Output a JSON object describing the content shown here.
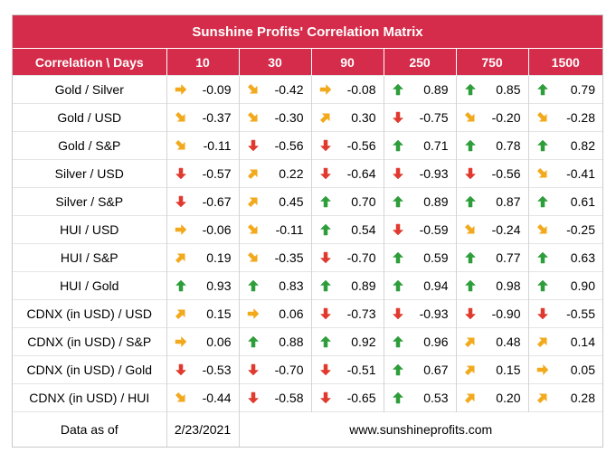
{
  "title": "Sunshine Profits' Correlation Matrix",
  "header": {
    "corner": "Correlation \\ Days",
    "days": [
      "10",
      "30",
      "90",
      "250",
      "750",
      "1500"
    ]
  },
  "colors": {
    "header_bg": "#d42c4a",
    "up": "#2e9e3a",
    "down": "#e03a2f",
    "side": "#f2a91c"
  },
  "rows": [
    {
      "label": "Gold / Silver",
      "cells": [
        [
          "right",
          "-0.09"
        ],
        [
          "down-right",
          "-0.42"
        ],
        [
          "right",
          "-0.08"
        ],
        [
          "up",
          "0.89"
        ],
        [
          "up",
          "0.85"
        ],
        [
          "up",
          "0.79"
        ]
      ]
    },
    {
      "label": "Gold / USD",
      "cells": [
        [
          "down-right",
          "-0.37"
        ],
        [
          "down-right",
          "-0.30"
        ],
        [
          "up-right",
          "0.30"
        ],
        [
          "down",
          "-0.75"
        ],
        [
          "down-right",
          "-0.20"
        ],
        [
          "down-right",
          "-0.28"
        ]
      ]
    },
    {
      "label": "Gold / S&P",
      "cells": [
        [
          "down-right",
          "-0.11"
        ],
        [
          "down",
          "-0.56"
        ],
        [
          "down",
          "-0.56"
        ],
        [
          "up",
          "0.71"
        ],
        [
          "up",
          "0.78"
        ],
        [
          "up",
          "0.82"
        ]
      ]
    },
    {
      "label": "Silver / USD",
      "cells": [
        [
          "down",
          "-0.57"
        ],
        [
          "up-right",
          "0.22"
        ],
        [
          "down",
          "-0.64"
        ],
        [
          "down",
          "-0.93"
        ],
        [
          "down",
          "-0.56"
        ],
        [
          "down-right",
          "-0.41"
        ]
      ]
    },
    {
      "label": "Silver / S&P",
      "cells": [
        [
          "down",
          "-0.67"
        ],
        [
          "up-right",
          "0.45"
        ],
        [
          "up",
          "0.70"
        ],
        [
          "up",
          "0.89"
        ],
        [
          "up",
          "0.87"
        ],
        [
          "up",
          "0.61"
        ]
      ]
    },
    {
      "label": "HUI / USD",
      "cells": [
        [
          "right",
          "-0.06"
        ],
        [
          "down-right",
          "-0.11"
        ],
        [
          "up",
          "0.54"
        ],
        [
          "down",
          "-0.59"
        ],
        [
          "down-right",
          "-0.24"
        ],
        [
          "down-right",
          "-0.25"
        ]
      ]
    },
    {
      "label": "HUI / S&P",
      "cells": [
        [
          "up-right",
          "0.19"
        ],
        [
          "down-right",
          "-0.35"
        ],
        [
          "down",
          "-0.70"
        ],
        [
          "up",
          "0.59"
        ],
        [
          "up",
          "0.77"
        ],
        [
          "up",
          "0.63"
        ]
      ]
    },
    {
      "label": "HUI / Gold",
      "cells": [
        [
          "up",
          "0.93"
        ],
        [
          "up",
          "0.83"
        ],
        [
          "up",
          "0.89"
        ],
        [
          "up",
          "0.94"
        ],
        [
          "up",
          "0.98"
        ],
        [
          "up",
          "0.90"
        ]
      ]
    },
    {
      "label": "CDNX (in USD) / USD",
      "cells": [
        [
          "up-right",
          "0.15"
        ],
        [
          "right",
          "0.06"
        ],
        [
          "down",
          "-0.73"
        ],
        [
          "down",
          "-0.93"
        ],
        [
          "down",
          "-0.90"
        ],
        [
          "down",
          "-0.55"
        ]
      ]
    },
    {
      "label": "CDNX (in USD) / S&P",
      "cells": [
        [
          "right",
          "0.06"
        ],
        [
          "up",
          "0.88"
        ],
        [
          "up",
          "0.92"
        ],
        [
          "up",
          "0.96"
        ],
        [
          "up-right",
          "0.48"
        ],
        [
          "up-right",
          "0.14"
        ]
      ]
    },
    {
      "label": "CDNX (in USD) / Gold",
      "cells": [
        [
          "down",
          "-0.53"
        ],
        [
          "down",
          "-0.70"
        ],
        [
          "down",
          "-0.51"
        ],
        [
          "up",
          "0.67"
        ],
        [
          "up-right",
          "0.15"
        ],
        [
          "right",
          "0.05"
        ]
      ]
    },
    {
      "label": "CDNX (in USD) / HUI",
      "cells": [
        [
          "down-right",
          "-0.44"
        ],
        [
          "down",
          "-0.58"
        ],
        [
          "down",
          "-0.65"
        ],
        [
          "up",
          "0.53"
        ],
        [
          "up-right",
          "0.20"
        ],
        [
          "up-right",
          "0.28"
        ]
      ]
    }
  ],
  "footer": {
    "label": "Data as of",
    "date": "2/23/2021",
    "website": "www.sunshineprofits.com"
  }
}
